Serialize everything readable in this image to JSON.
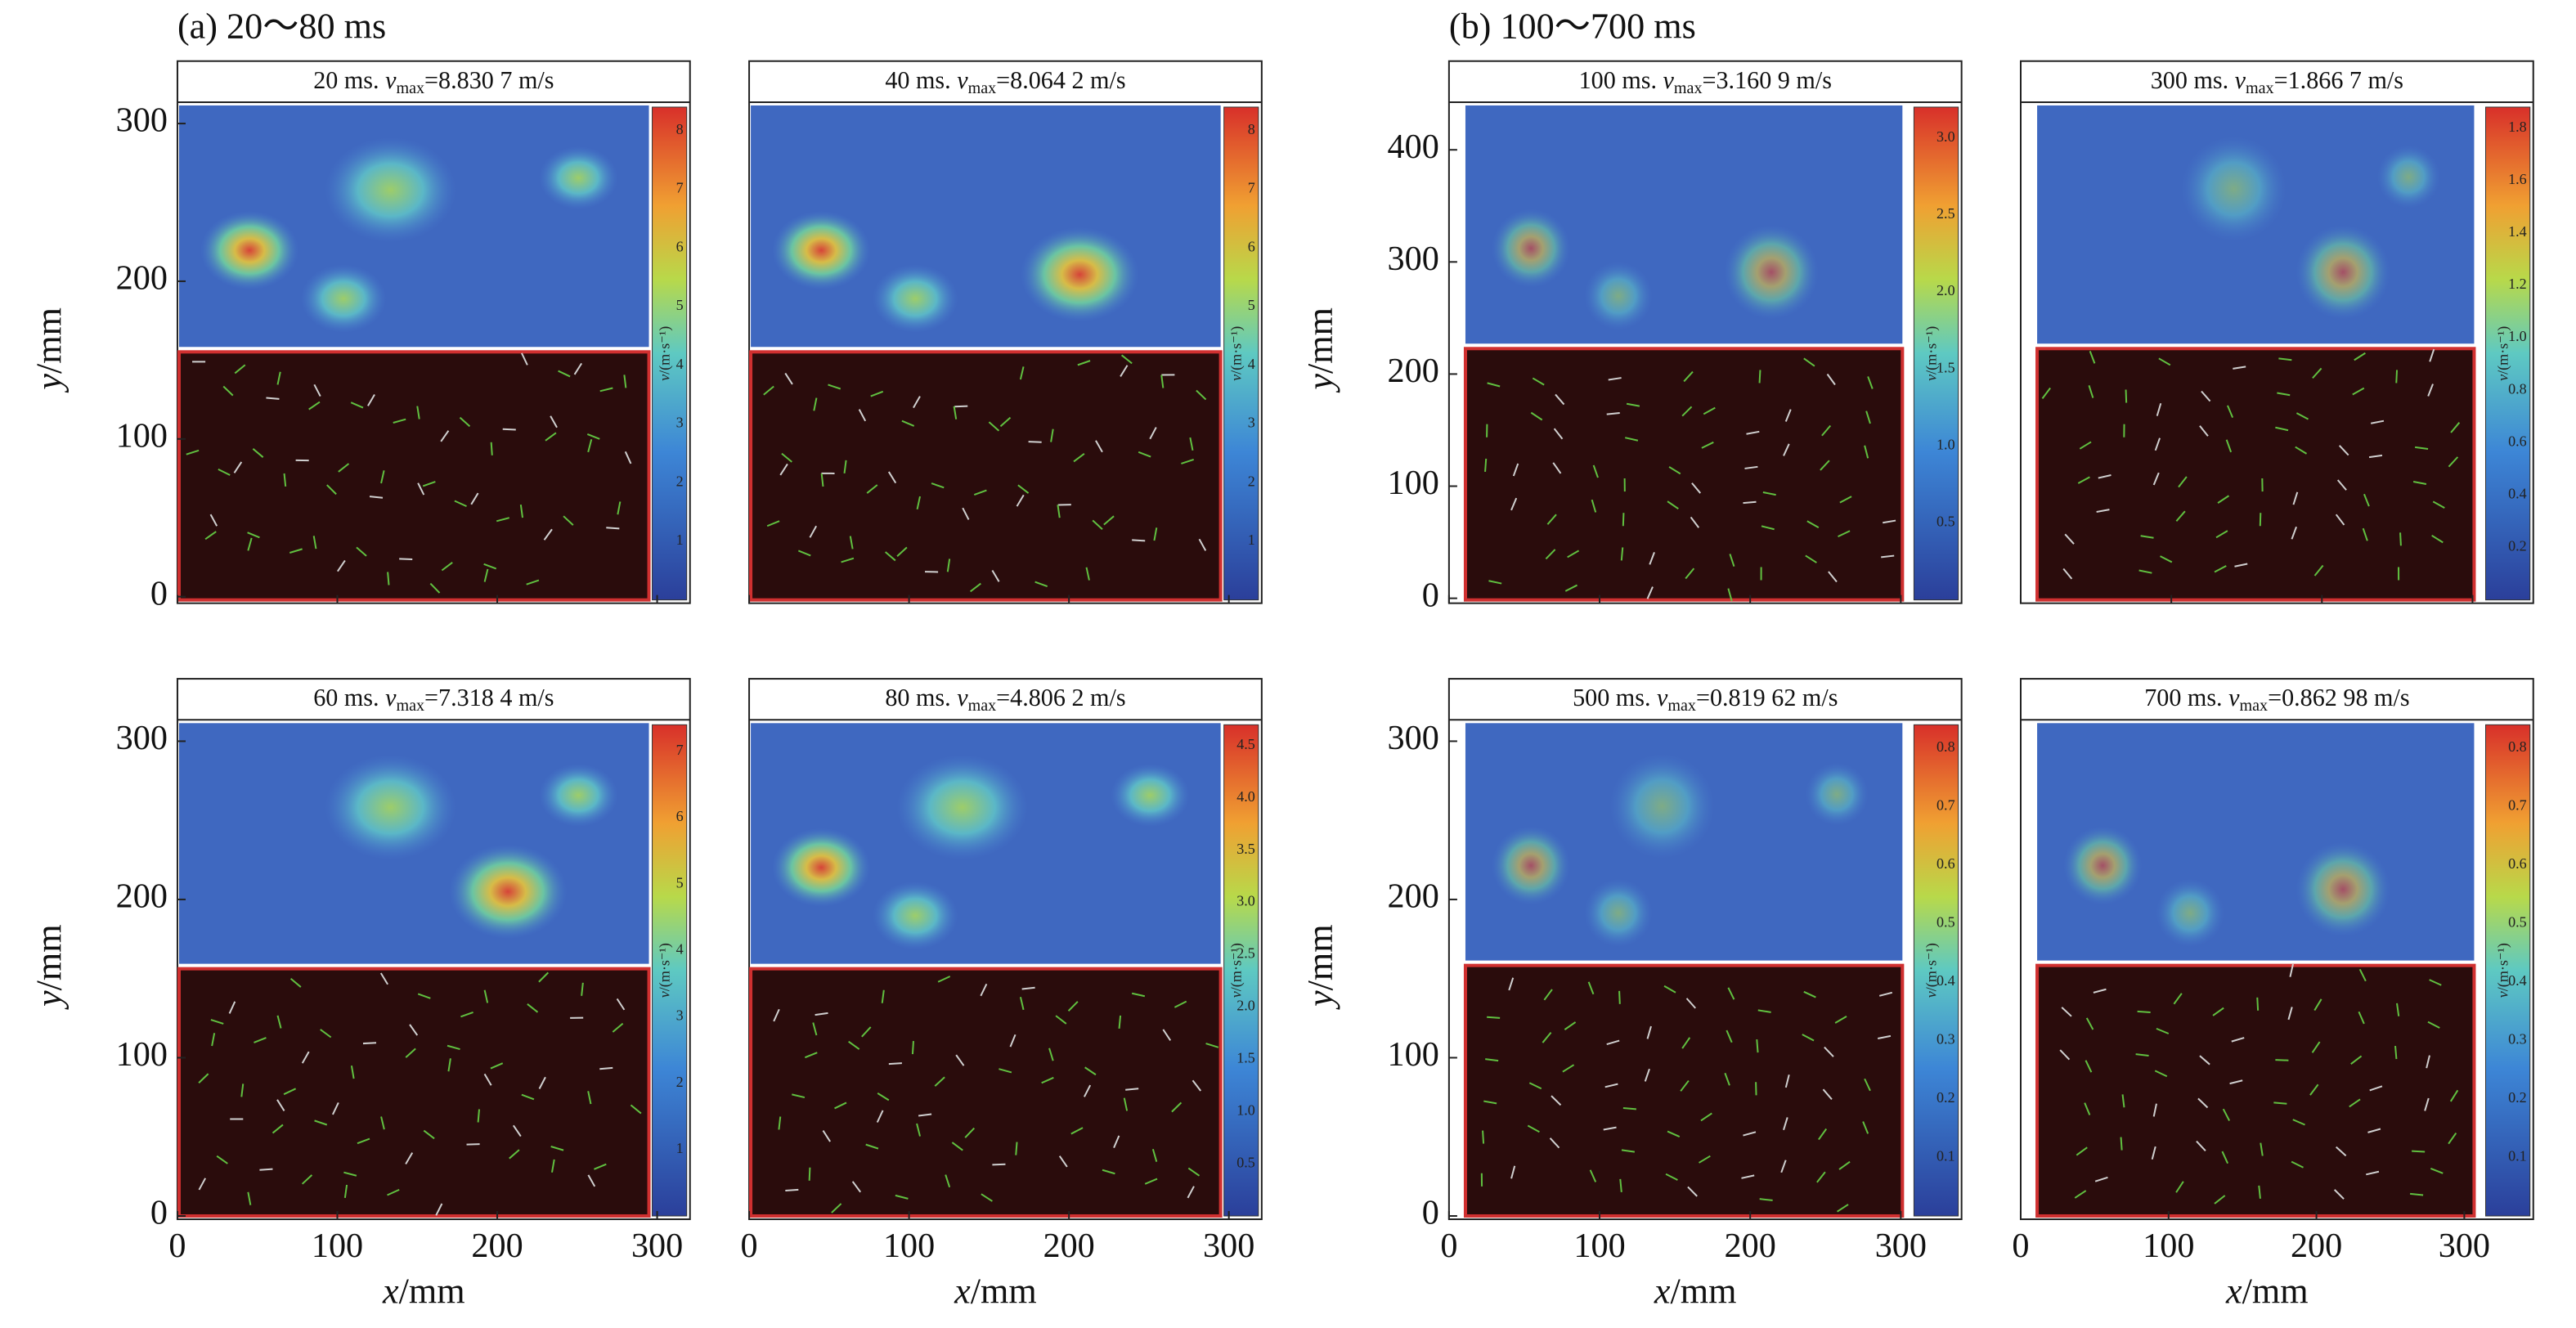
{
  "figure": {
    "groups": [
      {
        "label": "(a) 20～80 ms"
      },
      {
        "label": "(b) 100～700 ms"
      }
    ],
    "axis_labels": {
      "x": {
        "var": "x",
        "unit": "/mm"
      },
      "y": {
        "var": "y",
        "unit": "/mm"
      }
    },
    "colorbar_label": {
      "var": "v",
      "unit": "/(m·s⁻¹)"
    },
    "xticks": [
      0,
      100,
      200,
      300
    ],
    "yticks_a": [
      0,
      100,
      200,
      300
    ],
    "yticks_b_top": [
      0,
      100,
      200,
      300,
      400
    ],
    "yticks_b_bottom": [
      0,
      100,
      200,
      300
    ],
    "panels": [
      {
        "time": "20 ms.",
        "var": "v",
        "sub": "max",
        "value": "=8.830 7 m/s",
        "colorbar_ticks": [
          "1",
          "2",
          "3",
          "4",
          "5",
          "6",
          "7",
          "8"
        ]
      },
      {
        "time": "40 ms.",
        "var": "v",
        "sub": "max",
        "value": "=8.064 2 m/s",
        "colorbar_ticks": [
          "1",
          "2",
          "3",
          "4",
          "5",
          "6",
          "7",
          "8"
        ]
      },
      {
        "time": "60 ms.",
        "var": "v",
        "sub": "max",
        "value": "=7.318 4 m/s",
        "colorbar_ticks": [
          "1",
          "2",
          "3",
          "4",
          "5",
          "6",
          "7"
        ]
      },
      {
        "time": "80 ms.",
        "var": "v",
        "sub": "max",
        "value": "=4.806 2 m/s",
        "colorbar_ticks": [
          "0.5",
          "1.0",
          "1.5",
          "2.0",
          "2.5",
          "3.0",
          "3.5",
          "4.0",
          "4.5"
        ]
      },
      {
        "time": "100 ms.",
        "var": "v",
        "sub": "max",
        "value": "=3.160 9 m/s",
        "colorbar_ticks": [
          "0.5",
          "1.0",
          "1.5",
          "2.0",
          "2.5",
          "3.0"
        ]
      },
      {
        "time": "300 ms.",
        "var": "v",
        "sub": "max",
        "value": "=1.866 7 m/s",
        "colorbar_ticks": [
          "0.2",
          "0.4",
          "0.6",
          "0.8",
          "1.0",
          "1.2",
          "1.4",
          "1.6",
          "1.8"
        ]
      },
      {
        "time": "500 ms.",
        "var": "v",
        "sub": "max",
        "value": "=0.819 62  m/s",
        "colorbar_ticks": [
          "0.1",
          "0.2",
          "0.3",
          "0.4",
          "0.5",
          "0.6",
          "0.7",
          "0.8"
        ]
      },
      {
        "time": "700 ms.",
        "var": "v",
        "sub": "max",
        "value": "=0.862 98  m/s",
        "colorbar_ticks": [
          "0.1",
          "0.2",
          "0.3",
          "0.4",
          "0.5",
          "0.6",
          "0.7",
          "0.8"
        ]
      }
    ]
  }
}
